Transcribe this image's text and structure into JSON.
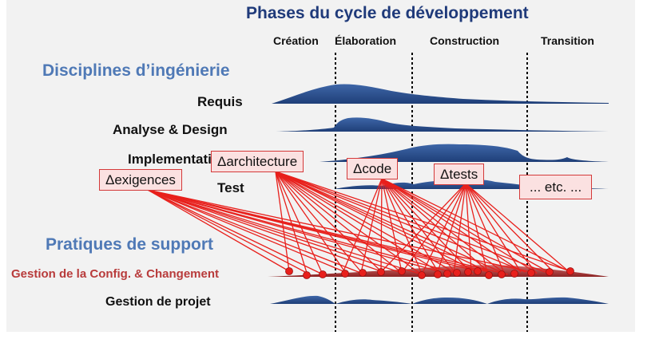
{
  "title": "Phases du cycle de développement",
  "phases": [
    {
      "id": "creation",
      "label": "Création"
    },
    {
      "id": "elaboration",
      "label": "Élaboration"
    },
    {
      "id": "construction",
      "label": "Construction"
    },
    {
      "id": "transition",
      "label": "Transition"
    }
  ],
  "sections": {
    "engineering": "Disciplines d’ingénierie",
    "support": "Pratiques de support"
  },
  "disciplines": {
    "requis": "Requis",
    "analyse_design": "Analyse & Design",
    "implementation": "Implementation",
    "test": "Test"
  },
  "support_practices": {
    "config": "Gestion de la Config. & Changement",
    "projet": "Gestion de projet"
  },
  "change_boxes": {
    "exigences": "Δexigences",
    "architecture": "Δarchitecture",
    "code": "Δcode",
    "tests": "Δtests",
    "etc": "... etc. ..."
  },
  "colors": {
    "title": "#1f3a7a",
    "section": "#4f79b6",
    "wave": "#2f5597",
    "config_text": "#b83b3b",
    "change_arrow": "#e8201c",
    "change_box_fill": "#fbe1e1",
    "change_box_border": "#d43a3a"
  }
}
